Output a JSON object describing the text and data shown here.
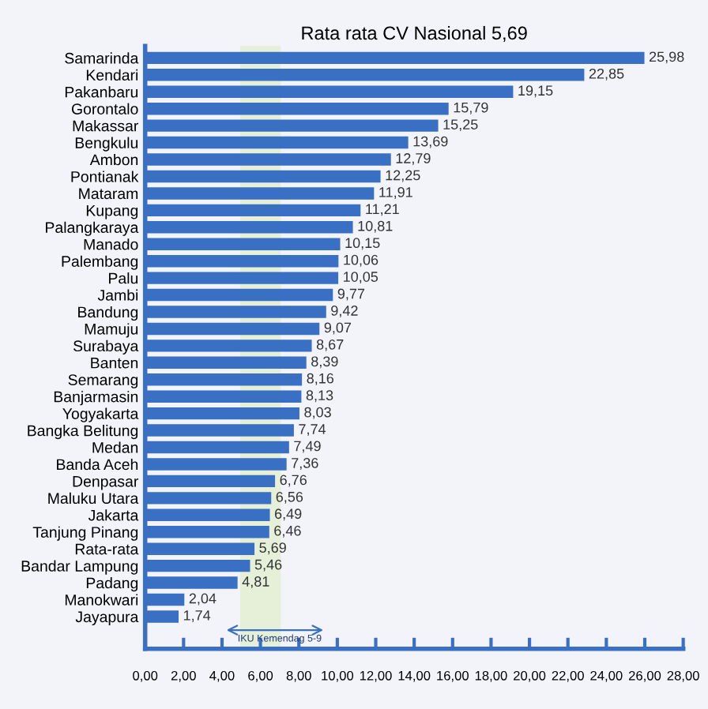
{
  "chart_data": {
    "type": "bar",
    "orientation": "horizontal",
    "title": "Rata rata CV Nasional 5,69",
    "categories": [
      "Samarinda",
      "Kendari",
      "Pakanbaru",
      "Gorontalo",
      "Makassar",
      "Bengkulu",
      "Ambon",
      "Pontianak",
      "Mataram",
      "Kupang",
      "Palangkaraya",
      "Manado",
      "Palembang",
      "Palu",
      "Jambi",
      "Bandung",
      "Mamuju",
      "Surabaya",
      "Banten",
      "Semarang",
      "Banjarmasin",
      "Yogyakarta",
      "Bangka Belitung",
      "Medan",
      "Banda Aceh",
      "Denpasar",
      "Maluku Utara",
      "Jakarta",
      "Tanjung Pinang",
      "Rata-rata",
      "Bandar Lampung",
      "Padang",
      "Manokwari",
      "Jayapura"
    ],
    "values": [
      25.98,
      22.85,
      19.15,
      15.79,
      15.25,
      13.69,
      12.79,
      12.25,
      11.91,
      11.21,
      10.81,
      10.15,
      10.06,
      10.05,
      9.77,
      9.42,
      9.07,
      8.67,
      8.39,
      8.16,
      8.13,
      8.03,
      7.74,
      7.49,
      7.36,
      6.76,
      6.56,
      6.49,
      6.46,
      5.69,
      5.46,
      4.81,
      2.04,
      1.74
    ],
    "value_labels": [
      "25,98",
      "22,85",
      "19,15",
      "15,79",
      "15,25",
      "13,69",
      "12,79",
      "12,25",
      "11,91",
      "11,21",
      "10,81",
      "10,15",
      "10,06",
      "10,05",
      "9,77",
      "9,42",
      "9,07",
      "8,67",
      "8,39",
      "8,16",
      "8,13",
      "8,03",
      "7,74",
      "7,49",
      "7,36",
      "6,76",
      "6,56",
      "6,49",
      "6,46",
      "5,69",
      "5,46",
      "4,81",
      "2,04",
      "1,74"
    ],
    "color": "#3a70c4",
    "xlim": [
      0,
      28
    ],
    "xticks": [
      {
        "value": 0,
        "label": "0,00"
      },
      {
        "value": 2,
        "label": "2,00"
      },
      {
        "value": 4,
        "label": "4,00"
      },
      {
        "value": 6,
        "label": "6,00"
      },
      {
        "value": 8,
        "label": "8,00"
      },
      {
        "value": 10,
        "label": "10,00"
      },
      {
        "value": 12,
        "label": "12,00"
      },
      {
        "value": 14,
        "label": "14,00"
      },
      {
        "value": 16,
        "label": "16,00"
      },
      {
        "value": 18,
        "label": "18,00"
      },
      {
        "value": 20,
        "label": "20,00"
      },
      {
        "value": 22,
        "label": "22,00"
      },
      {
        "value": 24,
        "label": "24,00"
      },
      {
        "value": 26,
        "label": "26,00"
      },
      {
        "value": 28,
        "label": "28,00"
      }
    ],
    "bands": [
      {
        "axis": "x",
        "from": 5,
        "to": 7,
        "label": "IKU Kemendag 5-9",
        "color": "#e6efd8"
      }
    ],
    "grid": false
  }
}
